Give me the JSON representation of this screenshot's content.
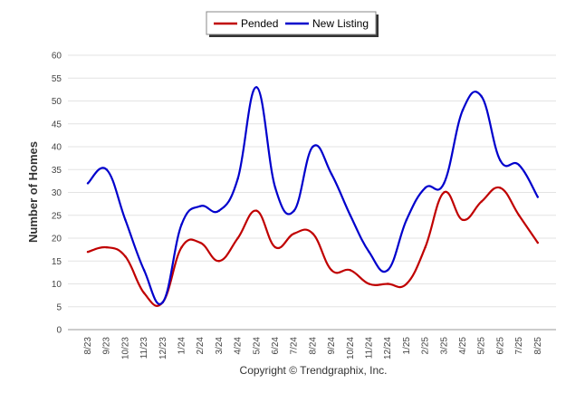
{
  "chart_data": {
    "type": "line",
    "title": "",
    "xlabel": "",
    "ylabel": "Number of Homes",
    "ylim": [
      0,
      60
    ],
    "yticks": [
      0,
      5,
      10,
      15,
      20,
      25,
      30,
      35,
      40,
      45,
      50,
      55,
      60
    ],
    "grid": "horizontal",
    "legend_position": "top-center",
    "categories": [
      "8/23",
      "9/23",
      "10/23",
      "11/23",
      "12/23",
      "1/24",
      "2/24",
      "3/24",
      "4/24",
      "5/24",
      "6/24",
      "7/24",
      "8/24",
      "9/24",
      "10/24",
      "11/24",
      "12/24",
      "1/25",
      "2/25",
      "3/25",
      "4/25",
      "5/25",
      "6/25",
      "7/25",
      "8/25"
    ],
    "series": [
      {
        "name": "Pended",
        "color": "#c00000",
        "values": [
          17,
          18,
          16,
          8,
          6,
          18,
          19,
          15,
          20,
          26,
          18,
          21,
          21,
          13,
          13,
          10,
          10,
          10,
          18,
          30,
          24,
          28,
          31,
          25,
          19
        ]
      },
      {
        "name": "New Listing",
        "color": "#0000cc",
        "values": [
          32,
          35,
          24,
          13,
          6,
          23,
          27,
          26,
          33,
          53,
          31,
          26,
          40,
          34,
          25,
          17,
          13,
          24,
          31,
          32,
          48,
          51,
          37,
          36,
          29
        ]
      }
    ],
    "credit": "Copyright © Trendgraphix, Inc."
  }
}
